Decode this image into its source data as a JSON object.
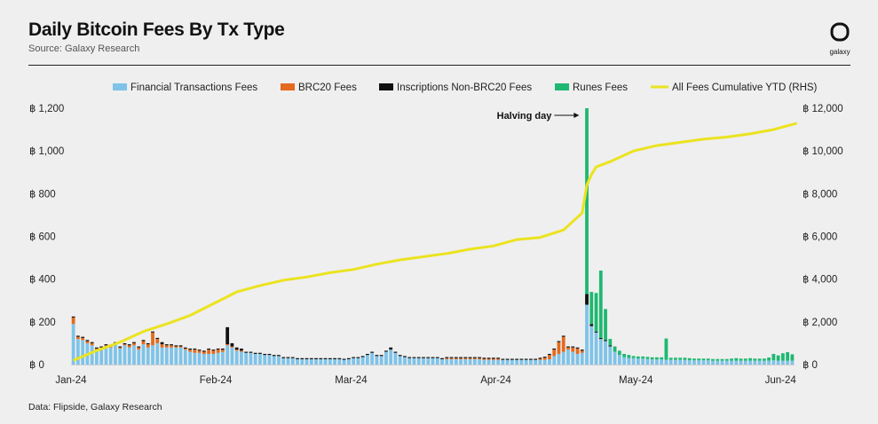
{
  "header": {
    "title": "Daily Bitcoin Fees By Tx Type",
    "subtitle": "Source: Galaxy Research",
    "logo_text": "galaxy"
  },
  "footer": {
    "note": "Data: Flipside, Galaxy Research"
  },
  "colors": {
    "financial": "#7fc3e8",
    "brc20": "#e36a1e",
    "inscriptions": "#111111",
    "runes": "#1fb871",
    "cumulative": "#ebe320",
    "background": "#efefef"
  },
  "chart_data": {
    "type": "bar",
    "title": "Daily Bitcoin Fees By Tx Type",
    "stacked": true,
    "legend_position": "top",
    "grid": false,
    "x_tick_labels": [
      "Jan-24",
      "Feb-24",
      "Mar-24",
      "Apr-24",
      "May-24",
      "Jun-24"
    ],
    "x_tick_day_index": [
      0,
      31,
      60,
      91,
      121,
      152
    ],
    "y_left": {
      "ticks": [
        "฿ 0",
        "฿ 200",
        "฿ 400",
        "฿ 600",
        "฿ 800",
        "฿ 1,000",
        "฿ 1,200"
      ],
      "range": [
        0,
        1200
      ]
    },
    "y_right": {
      "ticks": [
        "฿ 0",
        "฿ 2,000",
        "฿ 4,000",
        "฿ 6,000",
        "฿ 8,000",
        "฿ 10,000",
        "฿ 12,000"
      ],
      "range": [
        0,
        12000
      ]
    },
    "annotation": {
      "text": "Halving day",
      "day_index": 110
    },
    "series": [
      {
        "name": "Financial Transactions Fees",
        "values": [
          190,
          120,
          115,
          100,
          90,
          70,
          75,
          85,
          80,
          95,
          75,
          90,
          80,
          90,
          70,
          95,
          80,
          90,
          100,
          80,
          80,
          80,
          80,
          80,
          70,
          60,
          55,
          55,
          50,
          50,
          50,
          55,
          60,
          90,
          80,
          65,
          60,
          55,
          55,
          50,
          50,
          45,
          45,
          40,
          40,
          30,
          30,
          30,
          25,
          25,
          25,
          25,
          25,
          25,
          25,
          25,
          25,
          25,
          22,
          25,
          30,
          30,
          35,
          45,
          55,
          40,
          40,
          60,
          70,
          55,
          40,
          35,
          30,
          30,
          30,
          30,
          30,
          30,
          30,
          25,
          25,
          25,
          25,
          25,
          25,
          25,
          25,
          25,
          22,
          22,
          22,
          22,
          22,
          22,
          22,
          22,
          22,
          22,
          22,
          22,
          22,
          22,
          25,
          40,
          50,
          60,
          70,
          60,
          50,
          55,
          280,
          180,
          150,
          120,
          110,
          85,
          60,
          45,
          35,
          30,
          30,
          28,
          28,
          26,
          24,
          24,
          24,
          22,
          22,
          22,
          22,
          22,
          20,
          20,
          20,
          20,
          20,
          18,
          18,
          18,
          18,
          18,
          18,
          18,
          18,
          18,
          18,
          18,
          18,
          18,
          20,
          18,
          18,
          18,
          18
        ],
        "color_key": "financial"
      },
      {
        "name": "BRC20 Fees",
        "values": [
          30,
          10,
          10,
          10,
          10,
          5,
          5,
          5,
          5,
          5,
          5,
          5,
          10,
          10,
          10,
          15,
          15,
          60,
          20,
          15,
          10,
          10,
          5,
          5,
          5,
          10,
          15,
          10,
          10,
          20,
          15,
          15,
          10,
          5,
          5,
          5,
          5,
          0,
          0,
          0,
          0,
          0,
          0,
          0,
          0,
          0,
          0,
          0,
          0,
          0,
          0,
          0,
          0,
          0,
          0,
          0,
          0,
          0,
          0,
          0,
          0,
          0,
          0,
          0,
          0,
          0,
          0,
          0,
          0,
          0,
          0,
          0,
          0,
          0,
          0,
          0,
          0,
          0,
          0,
          0,
          5,
          5,
          5,
          5,
          5,
          5,
          5,
          5,
          5,
          5,
          5,
          5,
          0,
          0,
          0,
          0,
          0,
          0,
          0,
          0,
          5,
          10,
          20,
          30,
          55,
          70,
          10,
          20,
          25,
          10,
          0,
          0,
          0,
          0,
          0,
          0,
          0,
          0,
          0,
          0,
          0,
          0,
          0,
          0,
          0,
          0,
          0,
          0,
          0,
          0,
          0,
          0,
          0,
          0,
          0,
          0,
          0,
          0,
          0,
          0,
          0,
          0,
          0,
          0,
          0,
          0,
          0,
          0,
          0,
          0,
          0,
          0,
          0,
          0,
          0
        ],
        "color_key": "brc20"
      },
      {
        "name": "Inscriptions Non-BRC20 Fees",
        "values": [
          5,
          5,
          5,
          5,
          5,
          5,
          5,
          5,
          5,
          5,
          5,
          5,
          5,
          5,
          5,
          5,
          5,
          5,
          5,
          10,
          5,
          5,
          5,
          5,
          5,
          5,
          5,
          5,
          5,
          5,
          5,
          5,
          5,
          80,
          15,
          10,
          10,
          5,
          5,
          5,
          5,
          5,
          5,
          5,
          5,
          5,
          5,
          5,
          5,
          5,
          5,
          5,
          5,
          5,
          5,
          5,
          5,
          5,
          5,
          5,
          5,
          5,
          5,
          5,
          5,
          5,
          5,
          5,
          10,
          5,
          5,
          5,
          5,
          5,
          5,
          5,
          5,
          5,
          5,
          5,
          5,
          5,
          5,
          5,
          5,
          5,
          5,
          5,
          5,
          5,
          5,
          5,
          5,
          5,
          5,
          5,
          5,
          5,
          5,
          5,
          5,
          5,
          5,
          5,
          5,
          5,
          5,
          5,
          5,
          5,
          50,
          10,
          5,
          5,
          5,
          5,
          0,
          0,
          0,
          0,
          0,
          0,
          0,
          0,
          0,
          0,
          0,
          0,
          0,
          0,
          0,
          0,
          0,
          0,
          0,
          0,
          0,
          0,
          0,
          0,
          0,
          0,
          0,
          0,
          0,
          0,
          0,
          0,
          0,
          0,
          0,
          0,
          0,
          0,
          0
        ],
        "color_key": "inscriptions"
      },
      {
        "name": "Runes Fees",
        "values": [
          0,
          0,
          0,
          0,
          0,
          0,
          0,
          0,
          0,
          0,
          0,
          0,
          0,
          0,
          0,
          0,
          0,
          0,
          0,
          0,
          0,
          0,
          0,
          0,
          0,
          0,
          0,
          0,
          0,
          0,
          0,
          0,
          0,
          0,
          0,
          0,
          0,
          0,
          0,
          0,
          0,
          0,
          0,
          0,
          0,
          0,
          0,
          0,
          0,
          0,
          0,
          0,
          0,
          0,
          0,
          0,
          0,
          0,
          0,
          0,
          0,
          0,
          0,
          0,
          0,
          0,
          0,
          0,
          0,
          0,
          0,
          0,
          0,
          0,
          0,
          0,
          0,
          0,
          0,
          0,
          0,
          0,
          0,
          0,
          0,
          0,
          0,
          0,
          0,
          0,
          0,
          0,
          0,
          0,
          0,
          0,
          0,
          0,
          0,
          0,
          0,
          0,
          0,
          0,
          0,
          0,
          0,
          0,
          0,
          0,
          870,
          150,
          180,
          315,
          145,
          30,
          25,
          20,
          15,
          15,
          10,
          10,
          10,
          10,
          10,
          10,
          10,
          100,
          10,
          10,
          10,
          10,
          10,
          8,
          8,
          8,
          8,
          8,
          8,
          8,
          8,
          10,
          12,
          10,
          10,
          12,
          10,
          10,
          10,
          15,
          30,
          25,
          35,
          40,
          30
        ],
        "color_key": "runes"
      },
      {
        "name": "All Fees Cumulative YTD (RHS)",
        "axis": "right",
        "type": "line",
        "color_key": "cumulative",
        "points": [
          [
            0,
            200
          ],
          [
            5,
            650
          ],
          [
            10,
            1050
          ],
          [
            15,
            1550
          ],
          [
            20,
            1900
          ],
          [
            25,
            2300
          ],
          [
            30,
            2850
          ],
          [
            35,
            3400
          ],
          [
            40,
            3700
          ],
          [
            45,
            3950
          ],
          [
            50,
            4100
          ],
          [
            55,
            4300
          ],
          [
            60,
            4450
          ],
          [
            65,
            4700
          ],
          [
            70,
            4900
          ],
          [
            75,
            5050
          ],
          [
            80,
            5200
          ],
          [
            85,
            5400
          ],
          [
            90,
            5550
          ],
          [
            95,
            5850
          ],
          [
            100,
            5950
          ],
          [
            105,
            6300
          ],
          [
            109,
            7100
          ],
          [
            110,
            8400
          ],
          [
            111,
            8900
          ],
          [
            112,
            9250
          ],
          [
            115,
            9500
          ],
          [
            120,
            10000
          ],
          [
            125,
            10250
          ],
          [
            130,
            10400
          ],
          [
            135,
            10550
          ],
          [
            140,
            10650
          ],
          [
            145,
            10800
          ],
          [
            150,
            11000
          ],
          [
            155,
            11300
          ]
        ]
      }
    ]
  }
}
